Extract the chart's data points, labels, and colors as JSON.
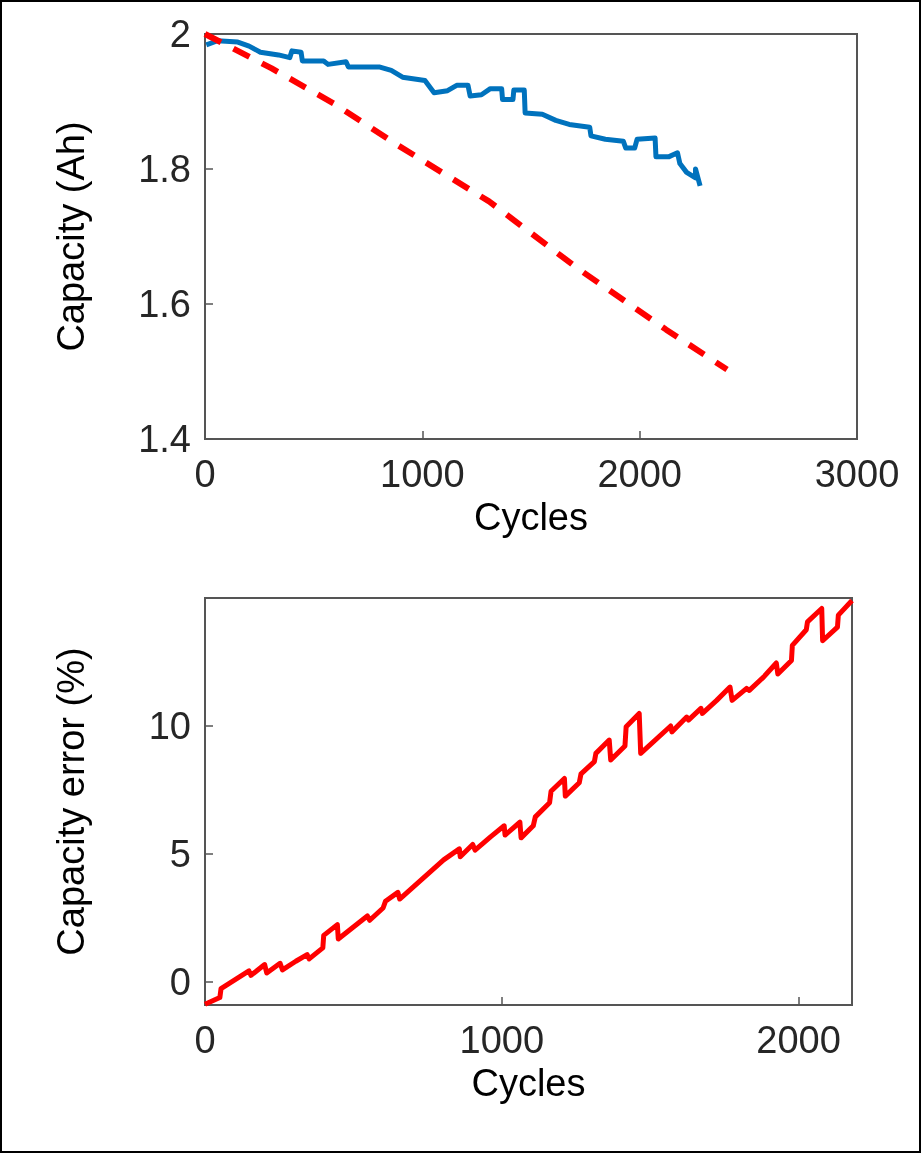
{
  "chart_data": [
    {
      "type": "line",
      "xlabel": "Cycles",
      "ylabel": "Capacity (Ah)",
      "xlim": [
        0,
        3000
      ],
      "xticks": [
        0,
        1000,
        2000,
        3000
      ],
      "ylim": [
        1.4,
        2.0
      ],
      "yticks": [
        1.4,
        1.6,
        1.8,
        {
          "value": 2.0,
          "label": "2"
        }
      ],
      "grid": false,
      "marker": "none",
      "series": [
        {
          "color": "#0072bd",
          "line_style": "solid",
          "x": [
            6,
            58,
            151,
            203,
            255,
            338,
            390,
            400,
            442,
            448,
            546,
            566,
            649,
            660,
            805,
            857,
            909,
            1012,
            1054,
            1116,
            1158,
            1210,
            1220,
            1272,
            1313,
            1365,
            1369,
            1417,
            1421,
            1469,
            1473,
            1552,
            1614,
            1676,
            1770,
            1776,
            1842,
            1925,
            1936,
            1977,
            1988,
            2071,
            2075,
            2133,
            2174,
            2185,
            2216,
            2257,
            2257,
            2278
          ],
          "values": [
            1.984,
            1.99,
            1.988,
            1.982,
            1.973,
            1.969,
            1.965,
            1.975,
            1.973,
            1.96,
            1.96,
            1.955,
            1.959,
            1.951,
            1.951,
            1.946,
            1.936,
            1.931,
            1.913,
            1.916,
            1.924,
            1.924,
            1.908,
            1.91,
            1.919,
            1.919,
            1.903,
            1.903,
            1.917,
            1.917,
            1.883,
            1.881,
            1.872,
            1.866,
            1.862,
            1.849,
            1.844,
            1.841,
            1.831,
            1.831,
            1.844,
            1.846,
            1.818,
            1.818,
            1.824,
            1.808,
            1.795,
            1.787,
            1.8,
            1.775
          ]
        },
        {
          "color": "#ff0000",
          "line_style": "dashed",
          "x": [
            0,
            307,
            598,
            888,
            1307,
            1718,
            2122,
            2402
          ],
          "values": [
            2.0,
            1.949,
            1.896,
            1.835,
            1.752,
            1.652,
            1.562,
            1.503
          ]
        }
      ]
    },
    {
      "type": "line",
      "xlabel": "Cycles",
      "ylabel": "Capacity error (%)",
      "xlim": [
        0,
        2180
      ],
      "xticks": [
        0,
        1000,
        2000
      ],
      "ylim": [
        -0.9,
        15
      ],
      "yticks": [
        0,
        5,
        10
      ],
      "grid": false,
      "marker": "none",
      "series": [
        {
          "color": "#ff0000",
          "line_style": "solid",
          "x": [
            0,
            50,
            54,
            148,
            155,
            201,
            208,
            253,
            261,
            306,
            344,
            351,
            397,
            400,
            446,
            449,
            547,
            555,
            600,
            608,
            650,
            656,
            804,
            857,
            860,
            902,
            910,
            962,
            1008,
            1011,
            1061,
            1065,
            1106,
            1113,
            1161,
            1166,
            1211,
            1214,
            1261,
            1267,
            1312,
            1317,
            1362,
            1367,
            1415,
            1419,
            1463,
            1468,
            1569,
            1573,
            1623,
            1629,
            1671,
            1676,
            1724,
            1769,
            1776,
            1825,
            1834,
            1882,
            1925,
            1930,
            1976,
            1979,
            2026,
            2030,
            2078,
            2081,
            2131,
            2134,
            2180
          ],
          "values": [
            -0.87,
            -0.61,
            -0.26,
            0.43,
            0.26,
            0.68,
            0.35,
            0.73,
            0.47,
            0.81,
            1.07,
            0.9,
            1.33,
            1.82,
            2.24,
            1.68,
            2.58,
            2.41,
            2.89,
            3.15,
            3.5,
            3.24,
            4.77,
            5.2,
            4.89,
            5.37,
            5.15,
            5.67,
            6.1,
            5.74,
            6.24,
            5.63,
            6.1,
            6.45,
            7.0,
            7.45,
            7.95,
            7.26,
            7.78,
            8.13,
            8.61,
            8.93,
            9.45,
            8.67,
            9.22,
            9.97,
            10.49,
            8.93,
            10.0,
            9.77,
            10.35,
            10.23,
            10.69,
            10.49,
            11.0,
            11.52,
            11.0,
            11.47,
            11.39,
            11.91,
            12.46,
            12.03,
            12.56,
            13.15,
            13.76,
            14.07,
            14.59,
            13.33,
            13.86,
            14.33,
            14.9
          ]
        }
      ]
    }
  ]
}
